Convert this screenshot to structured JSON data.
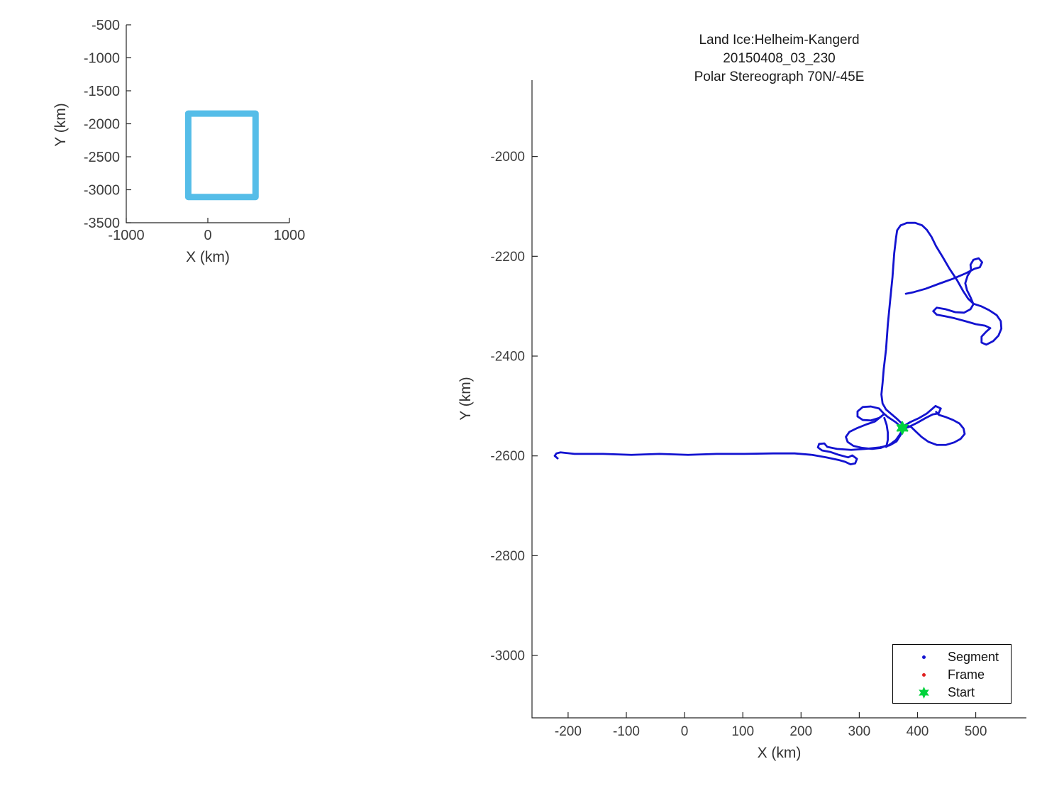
{
  "figure": {
    "background": "#ffffff"
  },
  "main_plot": {
    "title_line1": "Land Ice:Helheim-Kangerd",
    "title_line2": "20150408_03_230",
    "title_line3": "Polar Stereograph 70N/-45E",
    "xlabel": "X (km)",
    "ylabel": "Y (km)"
  },
  "inset_plot": {
    "xlabel": "X (km)",
    "ylabel": "Y (km)"
  },
  "legend": {
    "items": [
      {
        "label": "Segment",
        "marker": "dot",
        "color": "#1313d0"
      },
      {
        "label": "Frame",
        "marker": "dot",
        "color": "#e02020"
      },
      {
        "label": "Start",
        "marker": "hexagram",
        "color": "#00d23c"
      }
    ]
  },
  "colors": {
    "track_blue": "#1313d0",
    "frame_red": "#e02020",
    "start_green": "#00d23c",
    "coverage_cyan": "#55bde8",
    "axis_line": "#262626",
    "tick_text": "#3d3d3d"
  },
  "chart_data": [
    {
      "type": "line",
      "name": "overview-inset",
      "xlabel": "X (km)",
      "ylabel": "Y (km)",
      "xlim": [
        -1000,
        1000
      ],
      "ylim": [
        -3500,
        -500
      ],
      "x_ticks": [
        -1000,
        0,
        1000
      ],
      "y_ticks": [
        -500,
        -1000,
        -1500,
        -2000,
        -2500,
        -3000,
        -3500
      ],
      "grid": false,
      "series": [
        {
          "name": "coverage-outline",
          "color": "#55bde8",
          "linewidth": 9,
          "closed": true,
          "points": [
            [
              -240,
              -1845
            ],
            [
              585,
              -1845
            ],
            [
              585,
              -3110
            ],
            [
              -240,
              -3110
            ]
          ]
        }
      ]
    },
    {
      "type": "line",
      "name": "flight-track",
      "title": "Land Ice:Helheim-Kangerd 20150408_03_230 Polar Stereograph 70N/-45E",
      "xlabel": "X (km)",
      "ylabel": "Y (km)",
      "xlim": [
        -262,
        587
      ],
      "ylim": [
        -3125,
        -1847
      ],
      "x_ticks": [
        -200,
        -100,
        0,
        100,
        200,
        300,
        400,
        500
      ],
      "y_ticks": [
        -2000,
        -2200,
        -2400,
        -2600,
        -2800,
        -3000
      ],
      "grid": false,
      "legend_position": "lower-right",
      "series": [
        {
          "name": "Segment",
          "color": "#1313d0",
          "linewidth": 2.8,
          "segments": [
            [
              [
                -218,
                -2605
              ],
              [
                -223,
                -2600
              ],
              [
                -220,
                -2595
              ],
              [
                -213,
                -2593
              ],
              [
                -189,
                -2596
              ],
              [
                -140,
                -2596
              ],
              [
                -91,
                -2598
              ],
              [
                -43,
                -2596
              ],
              [
                6,
                -2598
              ],
              [
                55,
                -2596
              ],
              [
                103,
                -2596
              ],
              [
                152,
                -2595
              ],
              [
                189,
                -2595
              ],
              [
                219,
                -2598
              ],
              [
                243,
                -2603
              ],
              [
                264,
                -2608
              ],
              [
                276,
                -2612
              ],
              [
                285,
                -2617
              ],
              [
                293,
                -2615
              ],
              [
                296,
                -2606
              ],
              [
                288,
                -2599
              ],
              [
                281,
                -2603
              ],
              [
                265,
                -2598
              ],
              [
                250,
                -2592
              ],
              [
                236,
                -2589
              ],
              [
                229,
                -2583
              ],
              [
                231,
                -2576
              ],
              [
                240,
                -2575
              ],
              [
                245,
                -2582
              ],
              [
                262,
                -2586
              ],
              [
                286,
                -2588
              ],
              [
                310,
                -2586
              ],
              [
                335,
                -2583
              ],
              [
                352,
                -2579
              ],
              [
                364,
                -2571
              ],
              [
                371,
                -2558
              ],
              [
                374,
                -2546
              ]
            ],
            [
              [
                374,
                -2544
              ],
              [
                362,
                -2532
              ],
              [
                349,
                -2522
              ],
              [
                342,
                -2515
              ],
              [
                334,
                -2505
              ],
              [
                320,
                -2501
              ],
              [
                306,
                -2502
              ],
              [
                297,
                -2511
              ],
              [
                297,
                -2521
              ],
              [
                306,
                -2528
              ],
              [
                320,
                -2529
              ],
              [
                334,
                -2524
              ],
              [
                342,
                -2517
              ],
              [
                327,
                -2531
              ],
              [
                312,
                -2537
              ],
              [
                297,
                -2544
              ],
              [
                283,
                -2552
              ],
              [
                277,
                -2562
              ],
              [
                280,
                -2572
              ],
              [
                290,
                -2580
              ],
              [
                305,
                -2584
              ],
              [
                322,
                -2586
              ],
              [
                337,
                -2584
              ],
              [
                347,
                -2579
              ],
              [
                349,
                -2568
              ],
              [
                349,
                -2553
              ],
              [
                347,
                -2538
              ],
              [
                343,
                -2524
              ]
            ],
            [
              [
                374,
                -2548
              ],
              [
                369,
                -2558
              ],
              [
                363,
                -2568
              ],
              [
                354,
                -2576
              ],
              [
                346,
                -2582
              ]
            ],
            [
              [
                375,
                -2541
              ],
              [
                388,
                -2532
              ],
              [
                403,
                -2524
              ],
              [
                416,
                -2515
              ],
              [
                424,
                -2507
              ],
              [
                431,
                -2500
              ],
              [
                440,
                -2505
              ],
              [
                436,
                -2515
              ],
              [
                426,
                -2517
              ],
              [
                414,
                -2524
              ],
              [
                399,
                -2534
              ],
              [
                385,
                -2542
              ],
              [
                377,
                -2545
              ]
            ],
            [
              [
                432,
                -2512
              ],
              [
                437,
                -2518
              ],
              [
                448,
                -2522
              ],
              [
                461,
                -2528
              ],
              [
                472,
                -2535
              ],
              [
                479,
                -2545
              ],
              [
                481,
                -2556
              ],
              [
                474,
                -2566
              ],
              [
                463,
                -2573
              ],
              [
                449,
                -2578
              ],
              [
                433,
                -2578
              ],
              [
                419,
                -2572
              ],
              [
                407,
                -2562
              ],
              [
                397,
                -2551
              ],
              [
                389,
                -2542
              ],
              [
                381,
                -2539
              ]
            ],
            [
              [
                373,
                -2535
              ],
              [
                364,
                -2525
              ],
              [
                354,
                -2515
              ],
              [
                346,
                -2507
              ],
              [
                340,
                -2495
              ],
              [
                338,
                -2477
              ],
              [
                340,
                -2454
              ],
              [
                342,
                -2426
              ],
              [
                346,
                -2386
              ],
              [
                349,
                -2337
              ],
              [
                353,
                -2289
              ],
              [
                357,
                -2242
              ],
              [
                360,
                -2194
              ],
              [
                363,
                -2164
              ],
              [
                365,
                -2148
              ],
              [
                371,
                -2138
              ],
              [
                382,
                -2133
              ],
              [
                396,
                -2133
              ],
              [
                408,
                -2138
              ],
              [
                416,
                -2147
              ],
              [
                424,
                -2161
              ],
              [
                432,
                -2180
              ],
              [
                443,
                -2201
              ],
              [
                455,
                -2225
              ],
              [
                468,
                -2248
              ],
              [
                478,
                -2269
              ],
              [
                487,
                -2285
              ],
              [
                496,
                -2295
              ],
              [
                509,
                -2300
              ],
              [
                523,
                -2308
              ],
              [
                536,
                -2318
              ],
              [
                543,
                -2330
              ],
              [
                544,
                -2345
              ],
              [
                539,
                -2359
              ],
              [
                530,
                -2370
              ],
              [
                518,
                -2377
              ],
              [
                510,
                -2373
              ],
              [
                510,
                -2361
              ],
              [
                518,
                -2351
              ],
              [
                525,
                -2344
              ],
              [
                516,
                -2339
              ],
              [
                500,
                -2336
              ],
              [
                482,
                -2330
              ],
              [
                463,
                -2324
              ],
              [
                447,
                -2320
              ],
              [
                433,
                -2317
              ],
              [
                427,
                -2310
              ],
              [
                433,
                -2303
              ],
              [
                448,
                -2306
              ],
              [
                465,
                -2312
              ],
              [
                480,
                -2313
              ],
              [
                491,
                -2306
              ],
              [
                496,
                -2296
              ],
              [
                491,
                -2282
              ],
              [
                485,
                -2268
              ],
              [
                482,
                -2254
              ],
              [
                486,
                -2239
              ],
              [
                492,
                -2228
              ],
              [
                491,
                -2217
              ],
              [
                496,
                -2207
              ],
              [
                505,
                -2204
              ],
              [
                511,
                -2212
              ],
              [
                507,
                -2222
              ],
              [
                498,
                -2225
              ],
              [
                483,
                -2234
              ],
              [
                461,
                -2245
              ],
              [
                437,
                -2255
              ],
              [
                414,
                -2265
              ],
              [
                393,
                -2272
              ],
              [
                380,
                -2275
              ]
            ]
          ]
        },
        {
          "name": "Frame",
          "color": "#e02020",
          "points": []
        },
        {
          "name": "Start",
          "color": "#00d23c",
          "marker": "hexagram",
          "size": 17,
          "points": [
            [
              374,
              -2544
            ]
          ]
        }
      ]
    }
  ]
}
